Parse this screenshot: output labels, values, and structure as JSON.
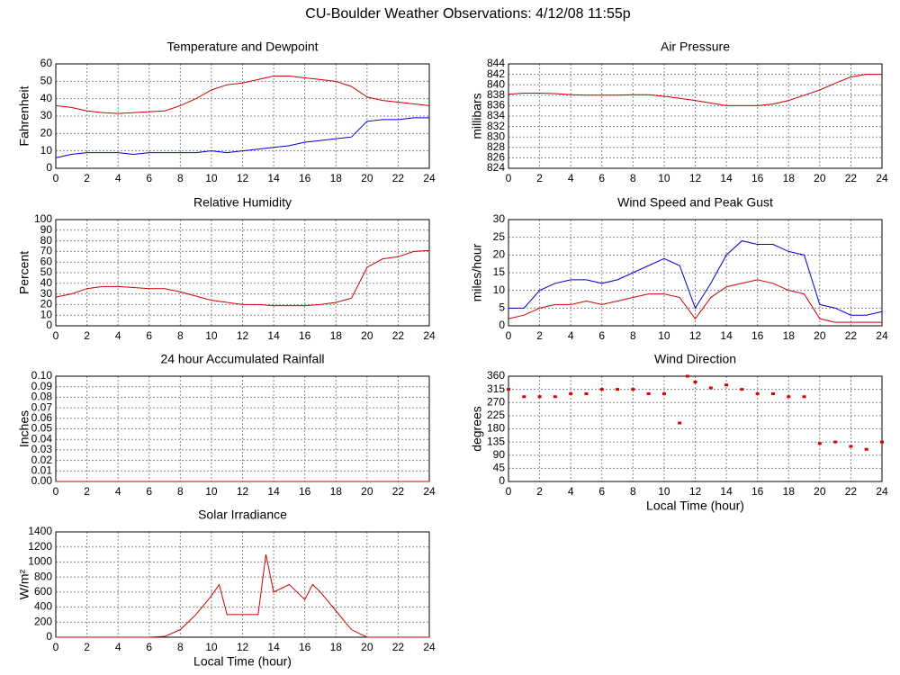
{
  "title": "CU-Boulder Weather Observations: 4/12/08 11:55p",
  "chart_data": [
    {
      "type": "line",
      "title": "Temperature and Dewpoint",
      "ylabel": "Fahrenheit",
      "x": [
        0,
        1,
        2,
        3,
        4,
        5,
        6,
        7,
        8,
        9,
        10,
        11,
        12,
        13,
        14,
        15,
        16,
        17,
        18,
        19,
        20,
        21,
        22,
        23,
        24
      ],
      "series": [
        {
          "name": "Temperature",
          "color": "#cc0000",
          "values": [
            36,
            35,
            33,
            32,
            31.5,
            32,
            32.5,
            33,
            36,
            40,
            45,
            48,
            49,
            51,
            53,
            53,
            52,
            51,
            50,
            47,
            41,
            39,
            38,
            37,
            36
          ]
        },
        {
          "name": "Dewpoint",
          "color": "#0000cc",
          "values": [
            6,
            8,
            9,
            9,
            9,
            8,
            9,
            9,
            9,
            9,
            10,
            9,
            10,
            11,
            12,
            13,
            15,
            16,
            17,
            18,
            27,
            28,
            28,
            29,
            29
          ]
        }
      ],
      "xlim": [
        0,
        24
      ],
      "xticks": [
        0,
        2,
        4,
        6,
        8,
        10,
        12,
        14,
        16,
        18,
        20,
        22,
        24
      ],
      "ylim": [
        0,
        60
      ],
      "yticks": [
        0,
        10,
        20,
        30,
        40,
        50,
        60
      ],
      "grid": true
    },
    {
      "type": "line",
      "title": "Air Pressure",
      "ylabel": "millibars",
      "x": [
        0,
        1,
        2,
        3,
        4,
        5,
        6,
        7,
        8,
        9,
        10,
        11,
        12,
        13,
        14,
        15,
        16,
        17,
        18,
        19,
        20,
        21,
        22,
        23,
        24
      ],
      "series": [
        {
          "name": "Pressure",
          "color": "#cc0000",
          "values": [
            838.2,
            838.4,
            838.4,
            838.3,
            838.1,
            838,
            838,
            838,
            838.1,
            838.1,
            837.8,
            837.4,
            837,
            836.5,
            836,
            836,
            836,
            836.3,
            837,
            838,
            839,
            840.3,
            841.5,
            842,
            842
          ]
        }
      ],
      "xlim": [
        0,
        24
      ],
      "xticks": [
        0,
        2,
        4,
        6,
        8,
        10,
        12,
        14,
        16,
        18,
        20,
        22,
        24
      ],
      "ylim": [
        824,
        844
      ],
      "yticks": [
        824,
        826,
        828,
        830,
        832,
        834,
        836,
        838,
        840,
        842,
        844
      ],
      "grid": true
    },
    {
      "type": "line",
      "title": "Relative Humidity",
      "ylabel": "Percent",
      "x": [
        0,
        1,
        2,
        3,
        4,
        5,
        6,
        7,
        8,
        9,
        10,
        11,
        12,
        13,
        14,
        15,
        16,
        17,
        18,
        19,
        20,
        21,
        22,
        23,
        24
      ],
      "series": [
        {
          "name": "Humidity",
          "color": "#cc0000",
          "values": [
            27,
            30,
            35,
            37,
            37,
            36,
            35,
            35,
            32,
            28,
            24,
            22,
            20,
            20,
            19,
            19,
            19,
            20,
            22,
            26,
            55,
            63,
            65,
            70,
            71
          ]
        }
      ],
      "xlim": [
        0,
        24
      ],
      "xticks": [
        0,
        2,
        4,
        6,
        8,
        10,
        12,
        14,
        16,
        18,
        20,
        22,
        24
      ],
      "ylim": [
        0,
        100
      ],
      "yticks": [
        0,
        10,
        20,
        30,
        40,
        50,
        60,
        70,
        80,
        90,
        100
      ],
      "grid": true
    },
    {
      "type": "line",
      "title": "Wind Speed and Peak Gust",
      "ylabel": "miles/hour",
      "x": [
        0,
        1,
        2,
        3,
        4,
        5,
        6,
        7,
        8,
        9,
        10,
        11,
        12,
        13,
        14,
        15,
        16,
        17,
        18,
        19,
        20,
        21,
        22,
        23,
        24
      ],
      "series": [
        {
          "name": "Peak Gust",
          "color": "#0000cc",
          "values": [
            5,
            5,
            10,
            12,
            13,
            13,
            12,
            13,
            15,
            17,
            19,
            17,
            5,
            12,
            20,
            24,
            23,
            23,
            21,
            20,
            6,
            5,
            3,
            3,
            4
          ]
        },
        {
          "name": "Wind Speed",
          "color": "#cc0000",
          "values": [
            2,
            3,
            5,
            6,
            6,
            7,
            6,
            7,
            8,
            9,
            9,
            8,
            2,
            8,
            11,
            12,
            13,
            12,
            10,
            9,
            2,
            1,
            1,
            1,
            1
          ]
        }
      ],
      "xlim": [
        0,
        24
      ],
      "xticks": [
        0,
        2,
        4,
        6,
        8,
        10,
        12,
        14,
        16,
        18,
        20,
        22,
        24
      ],
      "ylim": [
        0,
        30
      ],
      "yticks": [
        0,
        5,
        10,
        15,
        20,
        25,
        30
      ],
      "grid": true
    },
    {
      "type": "line",
      "title": "24 hour Accumulated Rainfall",
      "ylabel": "Inches",
      "x": [
        0,
        24
      ],
      "series": [
        {
          "name": "Rainfall",
          "color": "#cc0000",
          "values": [
            0,
            0
          ]
        }
      ],
      "xlim": [
        0,
        24
      ],
      "xticks": [
        0,
        2,
        4,
        6,
        8,
        10,
        12,
        14,
        16,
        18,
        20,
        22,
        24
      ],
      "ylim": [
        0,
        0.1
      ],
      "yticks": [
        {
          "value": 0,
          "label": "0.00"
        },
        0.01,
        0.02,
        0.03,
        0.04,
        0.05,
        0.06,
        0.07,
        0.08,
        0.09,
        {
          "value": 0.1,
          "label": "0.10"
        }
      ],
      "grid": true
    },
    {
      "type": "scatter",
      "title": "Wind Direction",
      "ylabel": "degrees",
      "xlabel": "Local Time (hour)",
      "x": [
        0,
        1,
        2,
        3,
        4,
        5,
        6,
        7,
        8,
        9,
        10,
        11,
        11.5,
        12,
        13,
        14,
        15,
        16,
        17,
        18,
        19,
        20,
        21,
        22,
        23,
        24
      ],
      "series": [
        {
          "name": "Direction",
          "color": "#dd0000",
          "values": [
            315,
            290,
            290,
            290,
            300,
            300,
            315,
            315,
            315,
            300,
            300,
            200,
            360,
            340,
            320,
            330,
            315,
            300,
            300,
            290,
            290,
            130,
            135,
            120,
            110,
            135
          ]
        }
      ],
      "xlim": [
        0,
        24
      ],
      "xticks": [
        0,
        2,
        4,
        6,
        8,
        10,
        12,
        14,
        16,
        18,
        20,
        22,
        24
      ],
      "ylim": [
        0,
        360
      ],
      "yticks": [
        0,
        45,
        90,
        135,
        180,
        225,
        270,
        315,
        360
      ],
      "grid": true
    },
    {
      "type": "line",
      "title": "Solar Irradiance",
      "ylabel": "W/m²",
      "xlabel": "Local Time (hour)",
      "x": [
        0,
        6,
        7,
        8,
        9,
        10,
        10.5,
        11,
        12,
        13,
        13.5,
        14,
        15,
        16,
        16.5,
        17,
        18,
        19,
        20,
        24
      ],
      "series": [
        {
          "name": "Irradiance",
          "color": "#cc0000",
          "values": [
            0,
            0,
            10,
            100,
            300,
            550,
            700,
            300,
            300,
            300,
            1100,
            600,
            700,
            500,
            700,
            600,
            350,
            100,
            0,
            0
          ]
        }
      ],
      "xlim": [
        0,
        24
      ],
      "xticks": [
        0,
        2,
        4,
        6,
        8,
        10,
        12,
        14,
        16,
        18,
        20,
        22,
        24
      ],
      "ylim": [
        0,
        1400
      ],
      "yticks": [
        0,
        200,
        400,
        600,
        800,
        1000,
        1200,
        1400
      ],
      "grid": true
    }
  ]
}
